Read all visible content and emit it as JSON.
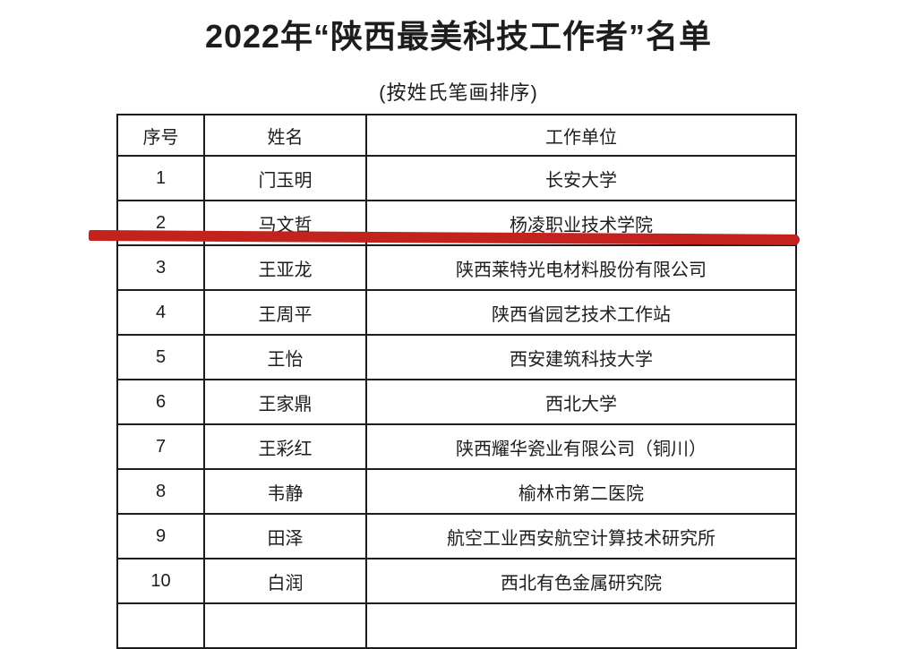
{
  "page": {
    "title": "2022年“陕西最美科技工作者”名单",
    "subtitle": "(按姓氏笔画排序)"
  },
  "table": {
    "headers": [
      "序号",
      "姓名",
      "工作单位"
    ],
    "rows": [
      {
        "no": "1",
        "name": "门玉明",
        "unit": "长安大学"
      },
      {
        "no": "2",
        "name": "马文哲",
        "unit": "杨凌职业技术学院"
      },
      {
        "no": "3",
        "name": "王亚龙",
        "unit": "陕西莱特光电材料股份有限公司"
      },
      {
        "no": "4",
        "name": "王周平",
        "unit": "陕西省园艺技术工作站"
      },
      {
        "no": "5",
        "name": "王怡",
        "unit": "西安建筑科技大学"
      },
      {
        "no": "6",
        "name": "王家鼎",
        "unit": "西北大学"
      },
      {
        "no": "7",
        "name": "王彩红",
        "unit": "陕西耀华瓷业有限公司（铜川）"
      },
      {
        "no": "8",
        "name": "韦静",
        "unit": "榆林市第二医院"
      },
      {
        "no": "9",
        "name": "田泽",
        "unit": "航空工业西安航空计算技术研究所"
      },
      {
        "no": "10",
        "name": "白润",
        "unit": "西北有色金属研究院"
      }
    ]
  },
  "annotation": {
    "type": "red-underline",
    "underlined_row_no": "2",
    "color": "#c4221f"
  },
  "colors": {
    "text": "#1d1d1d",
    "table_border": "#1c1c1c",
    "background": "#ffffff"
  }
}
